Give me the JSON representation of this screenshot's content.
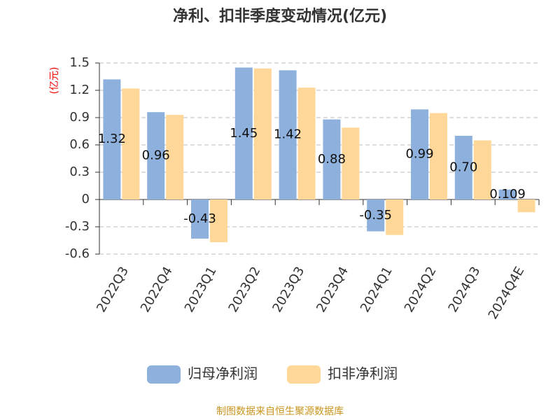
{
  "chart_data": {
    "type": "bar",
    "title": "净利、扣非季度变动情况(亿元)",
    "y_label": "(亿元)",
    "categories": [
      "2022Q3",
      "2022Q4",
      "2023Q1",
      "2023Q2",
      "2023Q3",
      "2023Q4",
      "2024Q1",
      "2024Q2",
      "2024Q3",
      "2024Q4E"
    ],
    "series": [
      {
        "name": "归母净利润",
        "color": "#8eb0dc",
        "values": [
          1.32,
          0.96,
          -0.43,
          1.45,
          1.42,
          0.88,
          -0.35,
          0.99,
          0.7,
          0.109
        ],
        "value_labels": [
          "1.32",
          "0.96",
          "-0.43",
          "1.45",
          "1.42",
          "0.88",
          "-0.35",
          "0.99",
          "0.70",
          "0.109"
        ]
      },
      {
        "name": "扣非净利润",
        "color": "#ffd899",
        "values": [
          1.22,
          0.93,
          -0.47,
          1.44,
          1.23,
          0.79,
          -0.39,
          0.95,
          0.65,
          -0.14
        ]
      }
    ],
    "ylim": [
      -0.6,
      1.5
    ],
    "yticks": [
      1.5,
      1.2,
      0.9,
      0.6,
      0.3,
      0,
      -0.3,
      -0.6
    ],
    "grid": true,
    "source": "制图数据来自恒生聚源数据库"
  }
}
